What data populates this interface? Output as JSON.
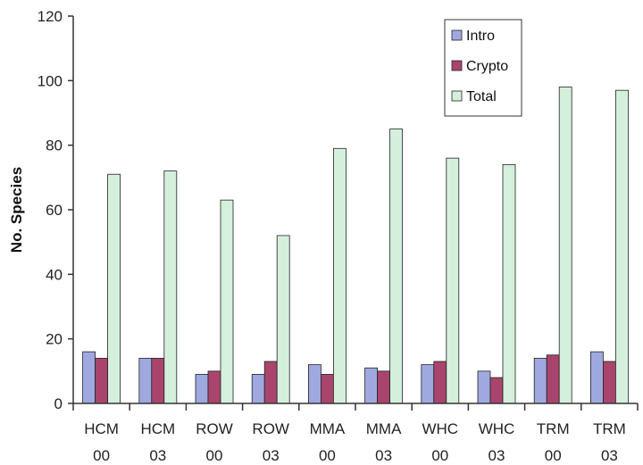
{
  "chart_data": {
    "type": "bar",
    "title": "",
    "xlabel": "",
    "ylabel": "No. Species",
    "ylim": [
      0,
      120
    ],
    "yticks": [
      0,
      20,
      40,
      60,
      80,
      100,
      120
    ],
    "grid": false,
    "legend_position": "top-right",
    "categories": [
      {
        "line1": "HCM",
        "line2": "00"
      },
      {
        "line1": "HCM",
        "line2": "03"
      },
      {
        "line1": "ROW",
        "line2": "00"
      },
      {
        "line1": "ROW",
        "line2": "03"
      },
      {
        "line1": "MMA",
        "line2": "00"
      },
      {
        "line1": "MMA",
        "line2": "03"
      },
      {
        "line1": "WHC",
        "line2": "00"
      },
      {
        "line1": "WHC",
        "line2": "03"
      },
      {
        "line1": "TRM",
        "line2": "00"
      },
      {
        "line1": "TRM",
        "line2": "03"
      }
    ],
    "series": [
      {
        "name": "Intro",
        "color": "#9fa9e0",
        "values": [
          16,
          14,
          9,
          9,
          12,
          11,
          12,
          10,
          14,
          16
        ]
      },
      {
        "name": "Crypto",
        "color": "#a9456d",
        "values": [
          14,
          14,
          10,
          13,
          9,
          10,
          13,
          8,
          15,
          13
        ]
      },
      {
        "name": "Total",
        "color": "#d4f0dd",
        "values": [
          71,
          72,
          63,
          52,
          79,
          85,
          76,
          74,
          98,
          97
        ]
      }
    ]
  }
}
